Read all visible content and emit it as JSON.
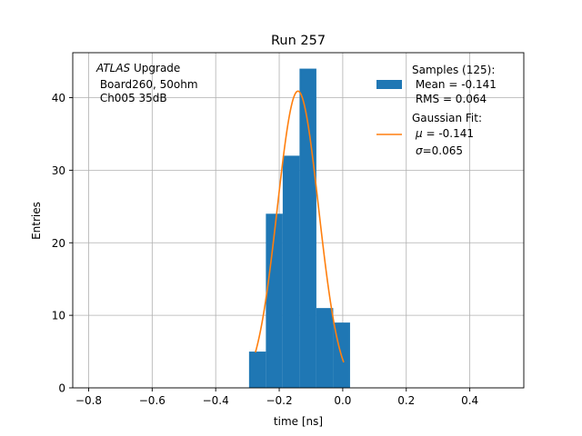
{
  "chart_data": {
    "type": "bar",
    "title": "Run 257",
    "xlabel": "time [ns]",
    "ylabel": "Entries",
    "xlim": [
      -0.85,
      0.57
    ],
    "ylim": [
      0,
      46.2
    ],
    "grid": true,
    "xticks": [
      -0.8,
      -0.6,
      -0.4,
      -0.2,
      0.0,
      0.2,
      0.4
    ],
    "xtick_labels": [
      "−0.8",
      "−0.6",
      "−0.4",
      "−0.2",
      "0.0",
      "0.2",
      "0.4"
    ],
    "yticks": [
      0,
      10,
      20,
      30,
      40
    ],
    "ytick_labels": [
      "0",
      "10",
      "20",
      "30",
      "40"
    ],
    "bins": [
      {
        "x0": -0.295,
        "x1": -0.242,
        "value": 5
      },
      {
        "x0": -0.242,
        "x1": -0.189,
        "value": 24
      },
      {
        "x0": -0.189,
        "x1": -0.136,
        "value": 32
      },
      {
        "x0": -0.136,
        "x1": -0.083,
        "value": 44
      },
      {
        "x0": -0.083,
        "x1": -0.03,
        "value": 11
      },
      {
        "x0": -0.03,
        "x1": 0.023,
        "value": 9
      }
    ],
    "fit": {
      "mu": -0.141,
      "sigma": 0.065,
      "amplitude": 40.9,
      "x_range": [
        -0.275,
        0.003
      ]
    },
    "colors": {
      "bars": "#1f77b4",
      "fit": "#ff7f0e",
      "grid": "#b0b0b0"
    },
    "annotation": {
      "line1_italic": "ATLAS",
      "line1_rest": " Upgrade",
      "line2": " Board260, 50ohm",
      "line3": " Ch005 35dB"
    },
    "legend": {
      "position": "top-right",
      "samples": {
        "line1": "Samples (125):",
        "line2": " Mean = -0.141",
        "line3": " RMS = 0.064"
      },
      "fit": {
        "line1": "Gaussian Fit:",
        "line2_sym": "μ",
        "line2_rest": " = -0.141",
        "line3_sym": "σ",
        "line3_rest": "=0.065"
      }
    }
  }
}
